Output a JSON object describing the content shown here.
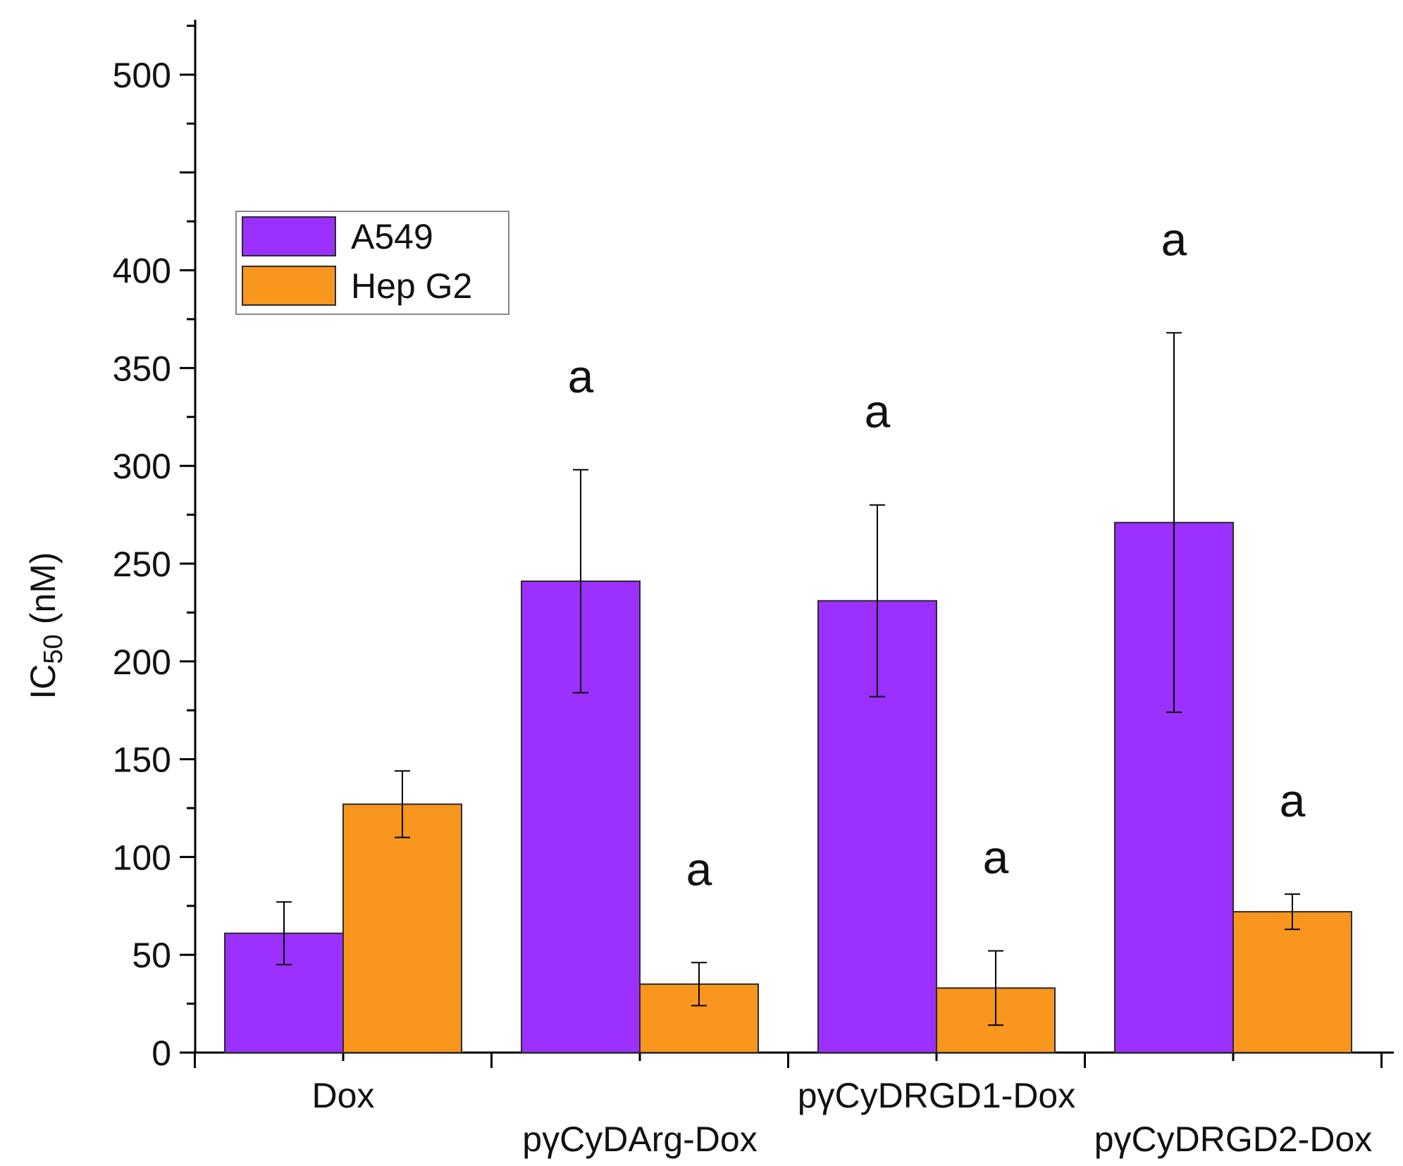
{
  "chart_data": {
    "type": "bar",
    "categories": [
      "Dox",
      "pγCyDArg-Dox",
      "pγCyDRGD1-Dox",
      "pγCyDRGD2-Dox"
    ],
    "series": [
      {
        "name": "A549",
        "color": "#9b30ff",
        "values": [
          61,
          241,
          231,
          271
        ],
        "errors": [
          16,
          57,
          49,
          97
        ],
        "significance": [
          "",
          "a",
          "a",
          "a"
        ]
      },
      {
        "name": "Hep G2",
        "color": "#f8961e",
        "values": [
          127,
          35,
          33,
          72
        ],
        "errors": [
          17,
          11,
          19,
          9
        ],
        "significance": [
          "",
          "a",
          "a",
          "a"
        ]
      }
    ],
    "ylabel_main": "IC",
    "ylabel_sub": "50",
    "ylabel_unit": " (nM)",
    "xlabel": "",
    "ylim": [
      0,
      525
    ],
    "yticks": [
      0,
      50,
      100,
      150,
      200,
      250,
      300,
      350,
      400,
      450,
      500
    ],
    "ytick_labels": [
      "0",
      "50",
      "100",
      "150",
      "200",
      "250",
      "300",
      "350",
      "400",
      "",
      "500"
    ],
    "legend_position": "top-left",
    "grid": false
  }
}
